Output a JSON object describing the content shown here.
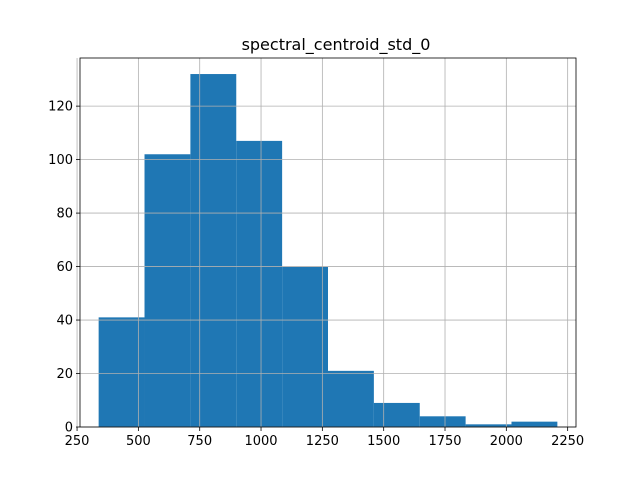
{
  "chart_data": {
    "type": "bar",
    "title": "spectral_centroid_std_0",
    "xlabel": "",
    "ylabel": "",
    "bin_edges": [
      338,
      525,
      712,
      899,
      1086,
      1273,
      1460,
      1647,
      1834,
      2021,
      2208
    ],
    "values": [
      41,
      102,
      132,
      107,
      60,
      21,
      9,
      4,
      1,
      2
    ],
    "xlim": [
      262,
      2284
    ],
    "ylim": [
      0,
      138
    ],
    "xticks": [
      250,
      500,
      750,
      1000,
      1250,
      1500,
      1750,
      2000,
      2250
    ],
    "yticks": [
      0,
      20,
      40,
      60,
      80,
      100,
      120
    ],
    "grid": true,
    "bar_color": "#1f77b4",
    "grid_color": "#b0b0b0"
  }
}
